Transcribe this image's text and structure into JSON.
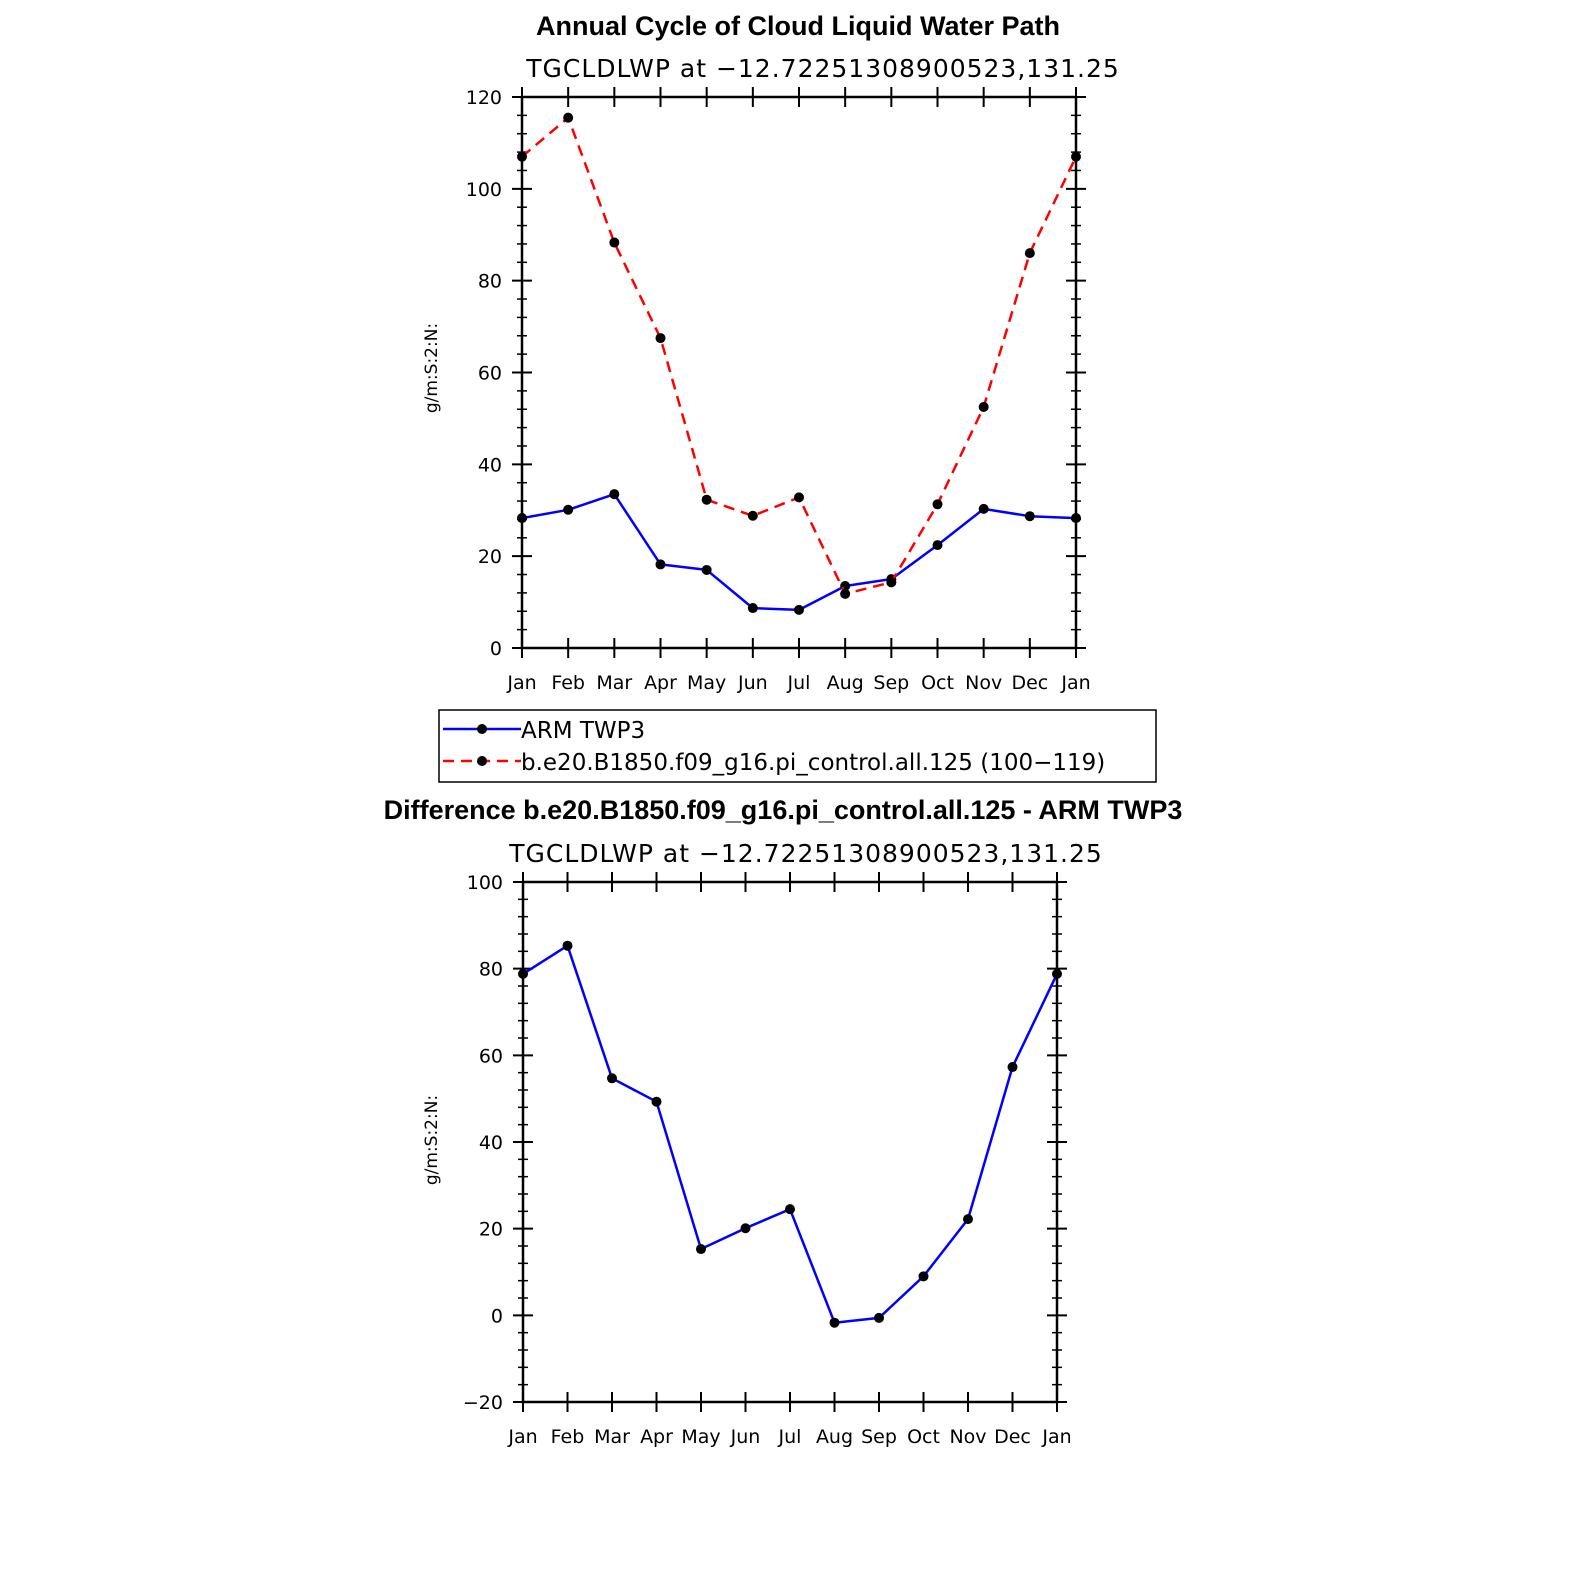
{
  "chart_data": [
    {
      "type": "line",
      "title": "Annual Cycle of Cloud Liquid Water Path",
      "subtitle": "TGCLDLWP at −12.72251308900523,131.25",
      "ylabel": "g/m:S:2:N:",
      "ylim": [
        0,
        120
      ],
      "yticks": [
        "0",
        "20",
        "40",
        "60",
        "80",
        "100",
        "120"
      ],
      "categories": [
        "Jan",
        "Feb",
        "Mar",
        "Apr",
        "May",
        "Jun",
        "Jul",
        "Aug",
        "Sep",
        "Oct",
        "Nov",
        "Dec",
        "Jan"
      ],
      "series": [
        {
          "name": "ARM TWP3",
          "color": "#0000ff",
          "dash": "solid",
          "values": [
            28.3,
            30.1,
            33.5,
            18.2,
            17.0,
            8.7,
            8.3,
            13.5,
            15.0,
            22.4,
            30.3,
            28.7,
            28.3
          ]
        },
        {
          "name": "b.e20.B1850.f09_g16.pi_control.all.125 (100−119)",
          "color": "#ff0000",
          "dash": "dashed",
          "values": [
            107.0,
            115.5,
            88.3,
            67.5,
            32.3,
            28.8,
            32.8,
            11.8,
            14.3,
            31.3,
            52.5,
            86.0,
            107.0
          ]
        }
      ],
      "legend": [
        "ARM TWP3",
        "b.e20.B1850.f09_g16.pi_control.all.125 (100−119)"
      ]
    },
    {
      "type": "line",
      "title": "Difference b.e20.B1850.f09_g16.pi_control.all.125 - ARM TWP3",
      "subtitle": "TGCLDLWP at −12.72251308900523,131.25",
      "ylabel": "g/m:S:2:N:",
      "ylim": [
        -20,
        100
      ],
      "yticks": [
        "−20",
        "0",
        "20",
        "40",
        "60",
        "80",
        "100"
      ],
      "categories": [
        "Jan",
        "Feb",
        "Mar",
        "Apr",
        "May",
        "Jun",
        "Jul",
        "Aug",
        "Sep",
        "Oct",
        "Nov",
        "Dec",
        "Jan"
      ],
      "series": [
        {
          "name": "Difference",
          "color": "#0000ff",
          "dash": "solid",
          "values": [
            78.8,
            85.3,
            54.7,
            49.3,
            15.3,
            20.1,
            24.5,
            -1.7,
            -0.6,
            9.0,
            22.2,
            57.3,
            78.8
          ]
        }
      ]
    }
  ]
}
